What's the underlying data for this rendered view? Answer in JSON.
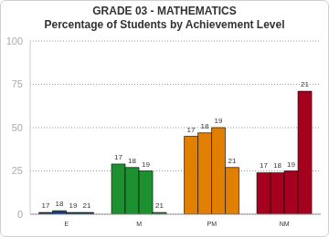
{
  "chart_data": {
    "type": "bar",
    "title": "GRADE 03 - MATHEMATICS",
    "subtitle": "Percentage of Students by Achievement Level",
    "categories": [
      "E",
      "M",
      "PM",
      "NM"
    ],
    "series": [
      {
        "name": "17",
        "values": [
          1,
          29,
          45,
          24
        ]
      },
      {
        "name": "18",
        "values": [
          2,
          27,
          47,
          24
        ]
      },
      {
        "name": "19",
        "values": [
          1,
          25,
          50,
          25
        ]
      },
      {
        "name": "21",
        "values": [
          1,
          1,
          27,
          71
        ]
      }
    ],
    "colors": [
      "#123a7a",
      "#1d9130",
      "#e07f00",
      "#a5001e"
    ],
    "ylim": [
      0,
      100
    ],
    "yticks": [
      0,
      25,
      50,
      75,
      100
    ],
    "grid": true
  }
}
